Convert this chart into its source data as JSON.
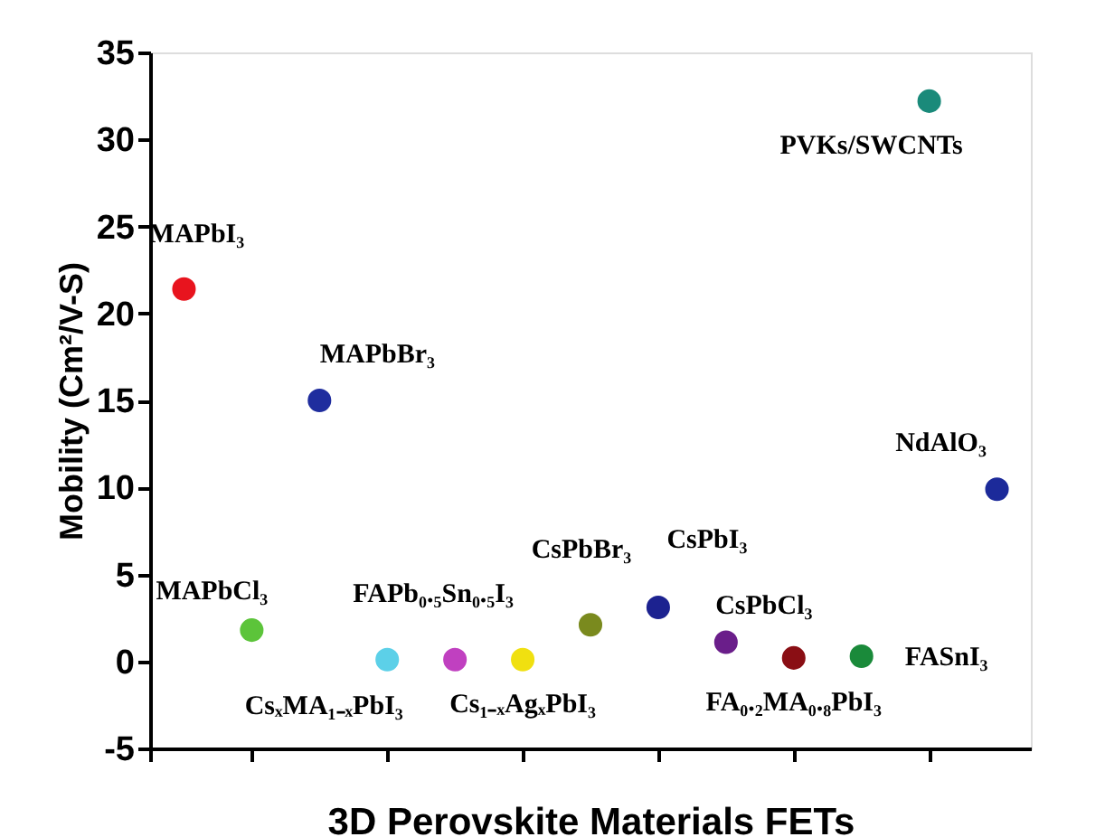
{
  "chart_data": {
    "type": "scatter",
    "xlabel": "3D Perovskite Materials FETs",
    "ylabel": "Mobility (Cm²/V-S)",
    "categories": [
      null,
      null,
      null,
      null,
      null,
      null,
      null,
      null,
      null,
      null,
      null,
      null,
      null
    ],
    "values": [
      21.4,
      1.8,
      15.0,
      0.1,
      0.1,
      0.1,
      2.1,
      3.1,
      1.1,
      0.2,
      0.3,
      32.2,
      9.9
    ],
    "colors": [
      "#e8141e",
      "#5cc43a",
      "#1f2d9e",
      "#5cd0e8",
      "#c040c0",
      "#f0e010",
      "#7a8a1e",
      "#1c2290",
      "#6a1e8a",
      "#8a0e14",
      "#1a8a3a",
      "#1a8a7a",
      "#1c2a9a"
    ],
    "annotations": [
      "MAPbI₃",
      "MAPbCl₃",
      "MAPbBr₃",
      "CsₓMA₁₋ₓPbI₃",
      "FAPb₀.₅Sn₀.₅I₃",
      "Cs₁₋ₓAgₓPbI₃",
      "CsPbBr₃",
      "CsPbI₃",
      "CsPbCl₃",
      "FA₀.₂MA₀.₈PbI₃",
      "FASnI₃",
      "PVKs/SWCNTs",
      "NdAlO₃"
    ],
    "ylim": [
      -5,
      35
    ],
    "yticks": [
      -5,
      0,
      5,
      10,
      15,
      20,
      25,
      30,
      35
    ],
    "grid": false,
    "marker": "circle",
    "tick_labels": "y"
  }
}
